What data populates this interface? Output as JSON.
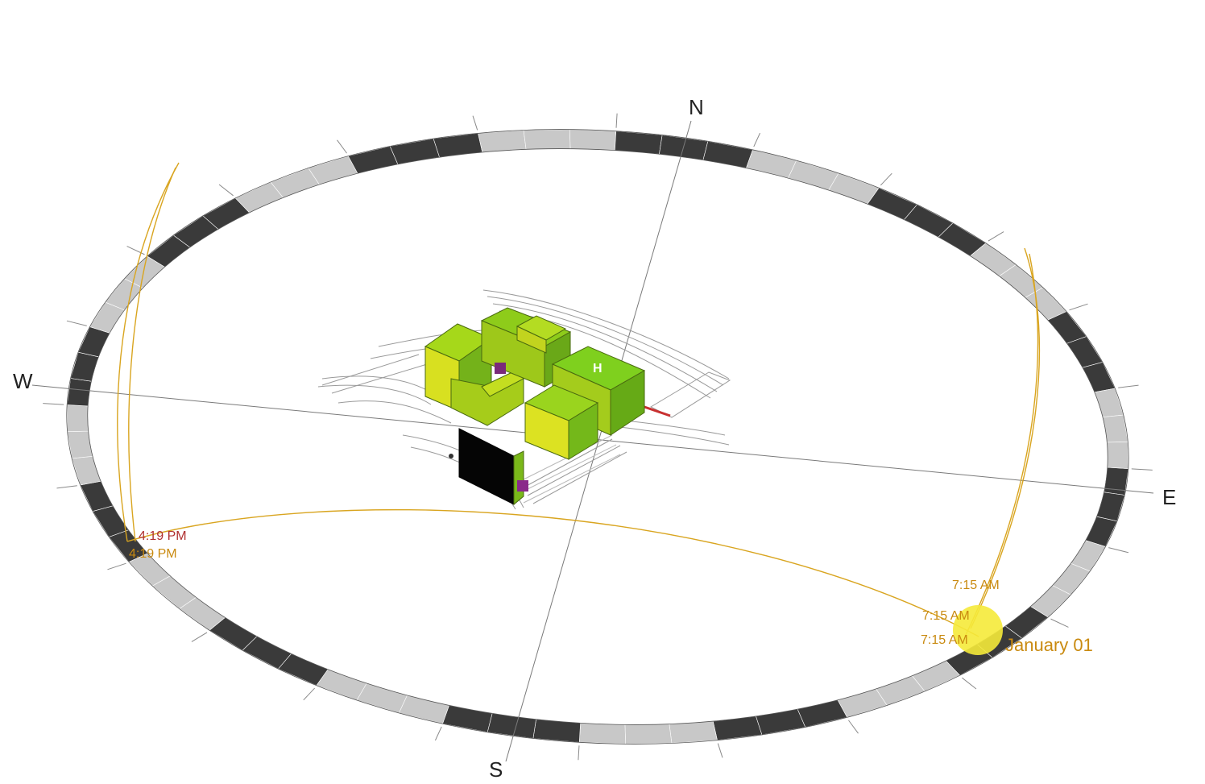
{
  "compass": {
    "north": "N",
    "south": "S",
    "east": "E",
    "west": "W"
  },
  "sun_path": {
    "sunset_times": [
      "4:19 PM",
      "4:19 PM"
    ],
    "sunrise_times": [
      "7:15 AM",
      "7:15 AM",
      "7:15 AM"
    ],
    "date": "January 01"
  },
  "building": {
    "label": "H"
  },
  "colors": {
    "path": "#d9a520",
    "label_orange": "#c98a10",
    "label_red": "#b03030",
    "sun": "#f5ea3a",
    "ring_dark": "#3a3a3a",
    "ring_light": "#c8c8c8",
    "building_green": "#7ec11a",
    "building_yellow": "#d4dc1a"
  }
}
